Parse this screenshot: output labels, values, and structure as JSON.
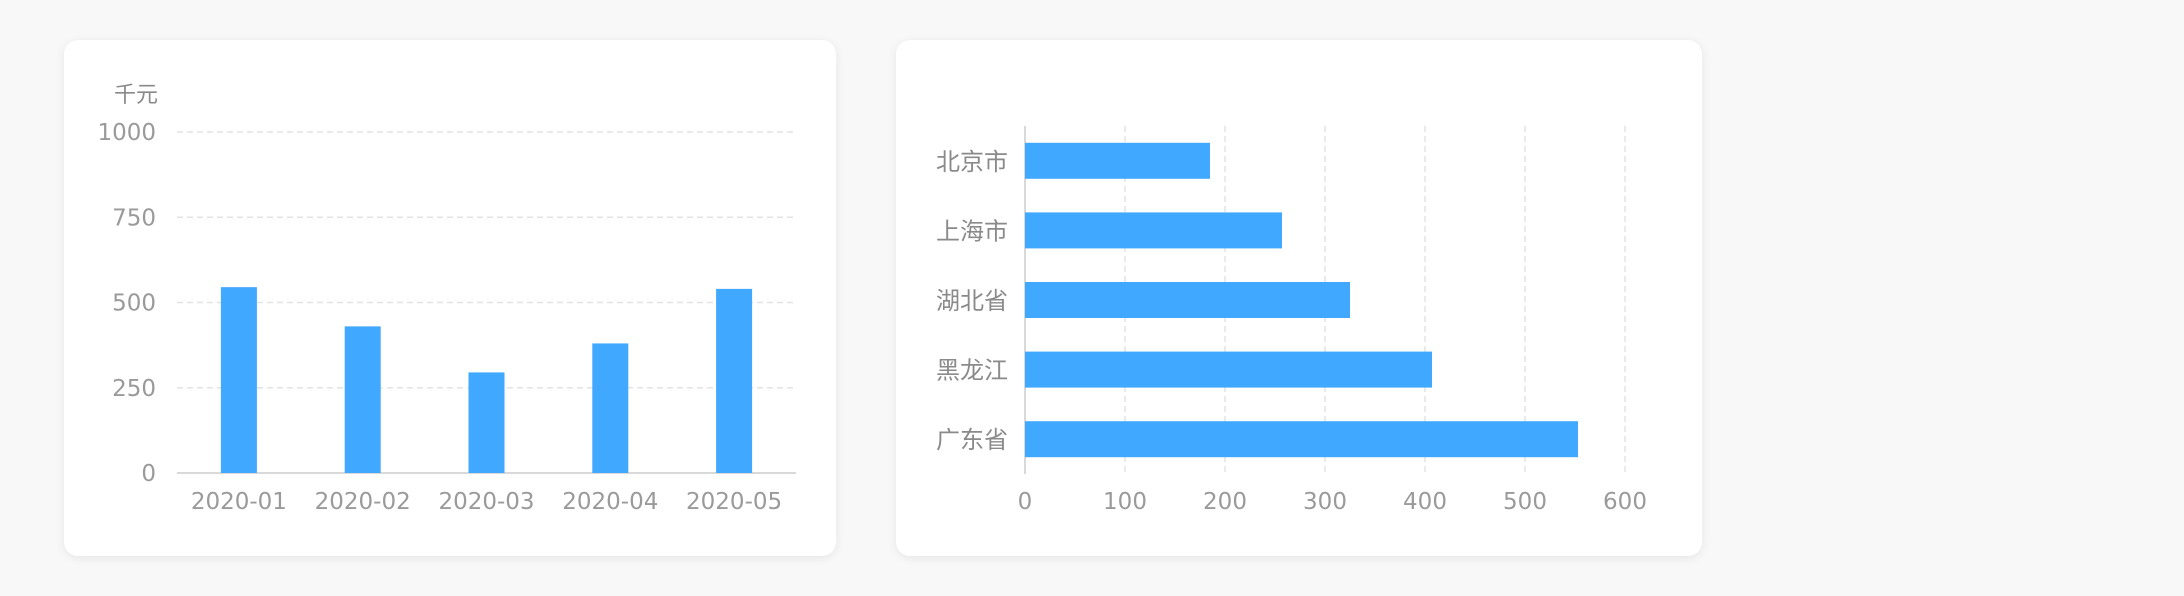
{
  "colors": {
    "bar": "#40a9ff",
    "grid": "#e3e3e3",
    "axis": "#d9d9d9",
    "text": "#9a9a9a"
  },
  "chart_data": [
    {
      "type": "bar",
      "orientation": "vertical",
      "unit_label": "千元",
      "categories": [
        "2020-01",
        "2020-02",
        "2020-03",
        "2020-04",
        "2020-05"
      ],
      "values": [
        545,
        430,
        295,
        380,
        540
      ],
      "yticks": [
        0,
        250,
        500,
        750,
        1000
      ],
      "ylim": [
        0,
        1000
      ],
      "grid": "horizontal-dashed"
    },
    {
      "type": "bar",
      "orientation": "horizontal",
      "categories": [
        "北京市",
        "上海市",
        "湖北省",
        "黑龙江",
        "广东省"
      ],
      "values": [
        185,
        257,
        325,
        407,
        553
      ],
      "xticks": [
        0,
        100,
        200,
        300,
        400,
        500,
        600
      ],
      "xlim": [
        0,
        600
      ],
      "grid": "vertical-dashed"
    }
  ]
}
